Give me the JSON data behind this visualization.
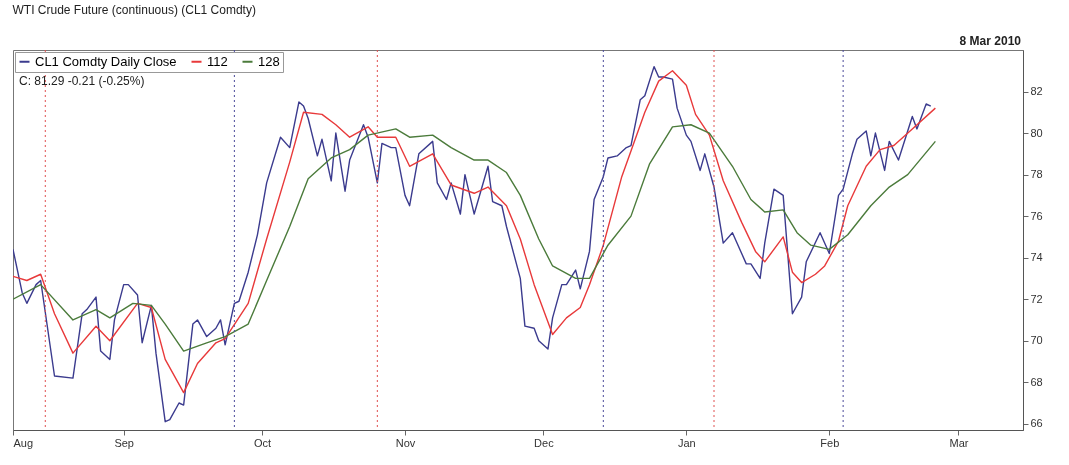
{
  "chart_data": {
    "type": "line",
    "title": "WTI Crude Future (continuous) (CL1 Comdty)",
    "annotations": [
      "C: 81.29 -0.21 (-0.25%)",
      "8 Mar 2010"
    ],
    "legend": "top left",
    "line_style": "solid",
    "grid": false,
    "xlim": [
      "2009-08-08",
      "2010-03-15"
    ],
    "xticks": [
      {
        "value": "2009-08-08",
        "label": "Aug"
      },
      {
        "value": "2009-09-01",
        "label": "Sep"
      },
      {
        "value": "2009-10-01",
        "label": "Oct"
      },
      {
        "value": "2009-11-01",
        "label": "Nov"
      },
      {
        "value": "2009-12-01",
        "label": "Dec"
      },
      {
        "value": "2010-01-01",
        "label": "Jan"
      },
      {
        "value": "2010-02-01",
        "label": "Feb"
      },
      {
        "value": "2010-03-01",
        "label": "Mar"
      }
    ],
    "ylim": [
      65.7,
      84
    ],
    "yticks": [
      66,
      68,
      70,
      72,
      74,
      76,
      78,
      80,
      82
    ],
    "ref_lines": [
      {
        "axis": "x",
        "value": "2009-08-15",
        "color": "#e05050",
        "line_style": "dotted"
      },
      {
        "axis": "x",
        "value": "2009-10-26",
        "color": "#e05050",
        "line_style": "dotted"
      },
      {
        "axis": "x",
        "value": "2010-01-07",
        "color": "#e05050",
        "line_style": "dotted"
      },
      {
        "axis": "x",
        "value": "2009-09-25",
        "color": "#4a4a9a",
        "line_style": "dotted"
      },
      {
        "axis": "x",
        "value": "2009-12-14",
        "color": "#4a4a9a",
        "line_style": "dotted"
      },
      {
        "axis": "x",
        "value": "2010-02-04",
        "color": "#4a4a9a",
        "line_style": "dotted"
      }
    ],
    "series": [
      {
        "name": "CL1 Comdty Daily Close",
        "color": "#3b3b8e",
        "x": [
          "2009-08-08",
          "2009-08-10",
          "2009-08-11",
          "2009-08-13",
          "2009-08-14",
          "2009-08-17",
          "2009-08-21",
          "2009-08-23",
          "2009-08-24",
          "2009-08-26",
          "2009-08-27",
          "2009-08-29",
          "2009-08-30",
          "2009-09-01",
          "2009-09-02",
          "2009-09-04",
          "2009-09-05",
          "2009-09-07",
          "2009-09-08",
          "2009-09-10",
          "2009-09-11",
          "2009-09-13",
          "2009-09-14",
          "2009-09-16",
          "2009-09-17",
          "2009-09-19",
          "2009-09-21",
          "2009-09-22",
          "2009-09-23",
          "2009-09-25",
          "2009-09-26",
          "2009-09-28",
          "2009-09-30",
          "2009-10-02",
          "2009-10-05",
          "2009-10-07",
          "2009-10-09",
          "2009-10-10",
          "2009-10-11",
          "2009-10-13",
          "2009-10-14",
          "2009-10-16",
          "2009-10-17",
          "2009-10-19",
          "2009-10-20",
          "2009-10-23",
          "2009-10-24",
          "2009-10-26",
          "2009-10-27",
          "2009-10-29",
          "2009-10-30",
          "2009-11-01",
          "2009-11-02",
          "2009-11-04",
          "2009-11-07",
          "2009-11-08",
          "2009-11-10",
          "2009-11-11",
          "2009-11-13",
          "2009-11-14",
          "2009-11-16",
          "2009-11-19",
          "2009-11-20",
          "2009-11-22",
          "2009-11-23",
          "2009-11-26",
          "2009-11-27",
          "2009-11-29",
          "2009-11-30",
          "2009-12-02",
          "2009-12-03",
          "2009-12-05",
          "2009-12-06",
          "2009-12-08",
          "2009-12-09",
          "2009-12-11",
          "2009-12-12",
          "2009-12-14",
          "2009-12-15",
          "2009-12-17",
          "2009-12-19",
          "2009-12-20",
          "2009-12-22",
          "2009-12-23",
          "2009-12-25",
          "2009-12-26",
          "2009-12-27",
          "2009-12-29",
          "2009-12-30",
          "2010-01-01",
          "2010-01-02",
          "2010-01-04",
          "2010-01-05",
          "2010-01-07",
          "2010-01-09",
          "2010-01-11",
          "2010-01-14",
          "2010-01-15",
          "2010-01-17",
          "2010-01-18",
          "2010-01-20",
          "2010-01-22",
          "2010-01-24",
          "2010-01-26",
          "2010-01-27",
          "2010-01-30",
          "2010-02-01",
          "2010-02-03",
          "2010-02-04",
          "2010-02-06",
          "2010-02-07",
          "2010-02-09",
          "2010-02-10",
          "2010-02-11",
          "2010-02-13",
          "2010-02-14",
          "2010-02-16",
          "2010-02-19",
          "2010-02-20",
          "2010-02-22",
          "2010-02-23"
        ],
        "values": [
          74.4,
          72.3,
          71.8,
          72.7,
          72.9,
          68.3,
          68.2,
          71.3,
          71.5,
          72.1,
          69.5,
          69.1,
          71.0,
          72.7,
          72.7,
          72.2,
          69.9,
          71.7,
          69.4,
          66.1,
          66.2,
          67.0,
          66.9,
          70.8,
          71.0,
          70.2,
          70.6,
          71.0,
          69.8,
          71.8,
          71.9,
          73.3,
          75.1,
          77.6,
          79.8,
          79.3,
          81.5,
          81.3,
          80.7,
          78.9,
          79.7,
          77.7,
          80.0,
          77.2,
          78.7,
          80.4,
          79.8,
          77.6,
          79.5,
          79.3,
          79.3,
          77.0,
          76.5,
          79.0,
          79.6,
          77.6,
          76.8,
          77.6,
          76.1,
          78.0,
          76.1,
          78.4,
          76.7,
          76.5,
          75.5,
          73.0,
          70.7,
          70.6,
          70.0,
          69.6,
          71.1,
          72.7,
          72.7,
          73.4,
          72.5,
          74.3,
          76.8,
          77.9,
          78.8,
          78.9,
          79.3,
          79.4,
          81.6,
          81.8,
          83.2,
          82.7,
          82.7,
          82.6,
          81.2,
          79.9,
          79.6,
          78.2,
          79.0,
          77.4,
          74.7,
          75.2,
          73.7,
          73.7,
          73.0,
          74.7,
          77.3,
          77.0,
          71.3,
          72.1,
          73.8,
          75.2,
          74.2,
          77.0,
          77.3,
          79.0,
          79.7,
          80.1,
          78.9,
          80.0,
          78.2,
          79.6,
          78.7,
          80.8,
          80.2,
          81.4,
          81.3
        ]
      },
      {
        "name": "112",
        "color": "#e8393a",
        "x": [
          "2009-08-08",
          "2009-08-11",
          "2009-08-14",
          "2009-08-17",
          "2009-08-21",
          "2009-08-26",
          "2009-08-29",
          "2009-09-04",
          "2009-09-07",
          "2009-09-10",
          "2009-09-14",
          "2009-09-17",
          "2009-09-21",
          "2009-09-23",
          "2009-09-28",
          "2009-10-02",
          "2009-10-07",
          "2009-10-10",
          "2009-10-14",
          "2009-10-17",
          "2009-10-20",
          "2009-10-24",
          "2009-10-26",
          "2009-10-30",
          "2009-11-02",
          "2009-11-07",
          "2009-11-11",
          "2009-11-16",
          "2009-11-19",
          "2009-11-23",
          "2009-11-26",
          "2009-11-29",
          "2009-12-03",
          "2009-12-06",
          "2009-12-09",
          "2009-12-11",
          "2009-12-14",
          "2009-12-18",
          "2009-12-23",
          "2009-12-26",
          "2009-12-29",
          "2010-01-01",
          "2010-01-03",
          "2010-01-06",
          "2010-01-09",
          "2010-01-13",
          "2010-01-16",
          "2010-01-18",
          "2010-01-22",
          "2010-01-24",
          "2010-01-26",
          "2010-01-29",
          "2010-01-31",
          "2010-02-03",
          "2010-02-05",
          "2010-02-09",
          "2010-02-12",
          "2010-02-15",
          "2010-02-19",
          "2010-02-24"
        ],
        "values": [
          73.1,
          72.9,
          73.2,
          71.3,
          69.4,
          70.7,
          70.0,
          71.8,
          71.6,
          69.1,
          67.5,
          68.9,
          69.9,
          70.1,
          71.8,
          74.9,
          78.6,
          81.0,
          80.9,
          80.4,
          79.8,
          80.3,
          79.8,
          79.8,
          78.4,
          79.0,
          77.5,
          77.1,
          77.4,
          76.5,
          74.9,
          72.7,
          70.3,
          71.1,
          71.6,
          72.7,
          74.6,
          77.9,
          81.0,
          82.5,
          83.0,
          82.3,
          80.9,
          79.9,
          77.7,
          75.7,
          74.3,
          73.8,
          75.0,
          73.3,
          72.8,
          73.2,
          73.6,
          74.8,
          76.5,
          78.4,
          79.2,
          79.4,
          80.2,
          81.2
        ]
      },
      {
        "name": "128",
        "color": "#4b7b3b",
        "x": [
          "2009-08-08",
          "2009-08-14",
          "2009-08-21",
          "2009-08-26",
          "2009-08-29",
          "2009-09-03",
          "2009-09-07",
          "2009-09-10",
          "2009-09-14",
          "2009-09-19",
          "2009-09-23",
          "2009-09-28",
          "2009-10-02",
          "2009-10-07",
          "2009-10-11",
          "2009-10-16",
          "2009-10-20",
          "2009-10-24",
          "2009-10-30",
          "2009-11-02",
          "2009-11-07",
          "2009-11-11",
          "2009-11-16",
          "2009-11-19",
          "2009-11-23",
          "2009-11-26",
          "2009-11-30",
          "2009-12-03",
          "2009-12-08",
          "2009-12-11",
          "2009-12-15",
          "2009-12-20",
          "2009-12-24",
          "2009-12-29",
          "2010-01-02",
          "2010-01-06",
          "2010-01-11",
          "2010-01-15",
          "2010-01-18",
          "2010-01-22",
          "2010-01-25",
          "2010-01-28",
          "2010-02-01",
          "2010-02-05",
          "2010-02-10",
          "2010-02-14",
          "2010-02-18",
          "2010-02-24"
        ],
        "values": [
          72.0,
          72.7,
          71.0,
          71.5,
          71.1,
          71.8,
          71.7,
          70.8,
          69.5,
          69.9,
          70.2,
          70.8,
          72.9,
          75.5,
          77.8,
          78.8,
          79.2,
          79.9,
          80.2,
          79.8,
          79.9,
          79.3,
          78.7,
          78.7,
          78.1,
          77.0,
          74.9,
          73.6,
          73.0,
          73.0,
          74.6,
          76.0,
          78.5,
          80.3,
          80.4,
          80.0,
          78.4,
          76.8,
          76.2,
          76.3,
          75.2,
          74.6,
          74.4,
          75.1,
          76.5,
          77.4,
          78.0,
          79.6
        ]
      }
    ]
  }
}
